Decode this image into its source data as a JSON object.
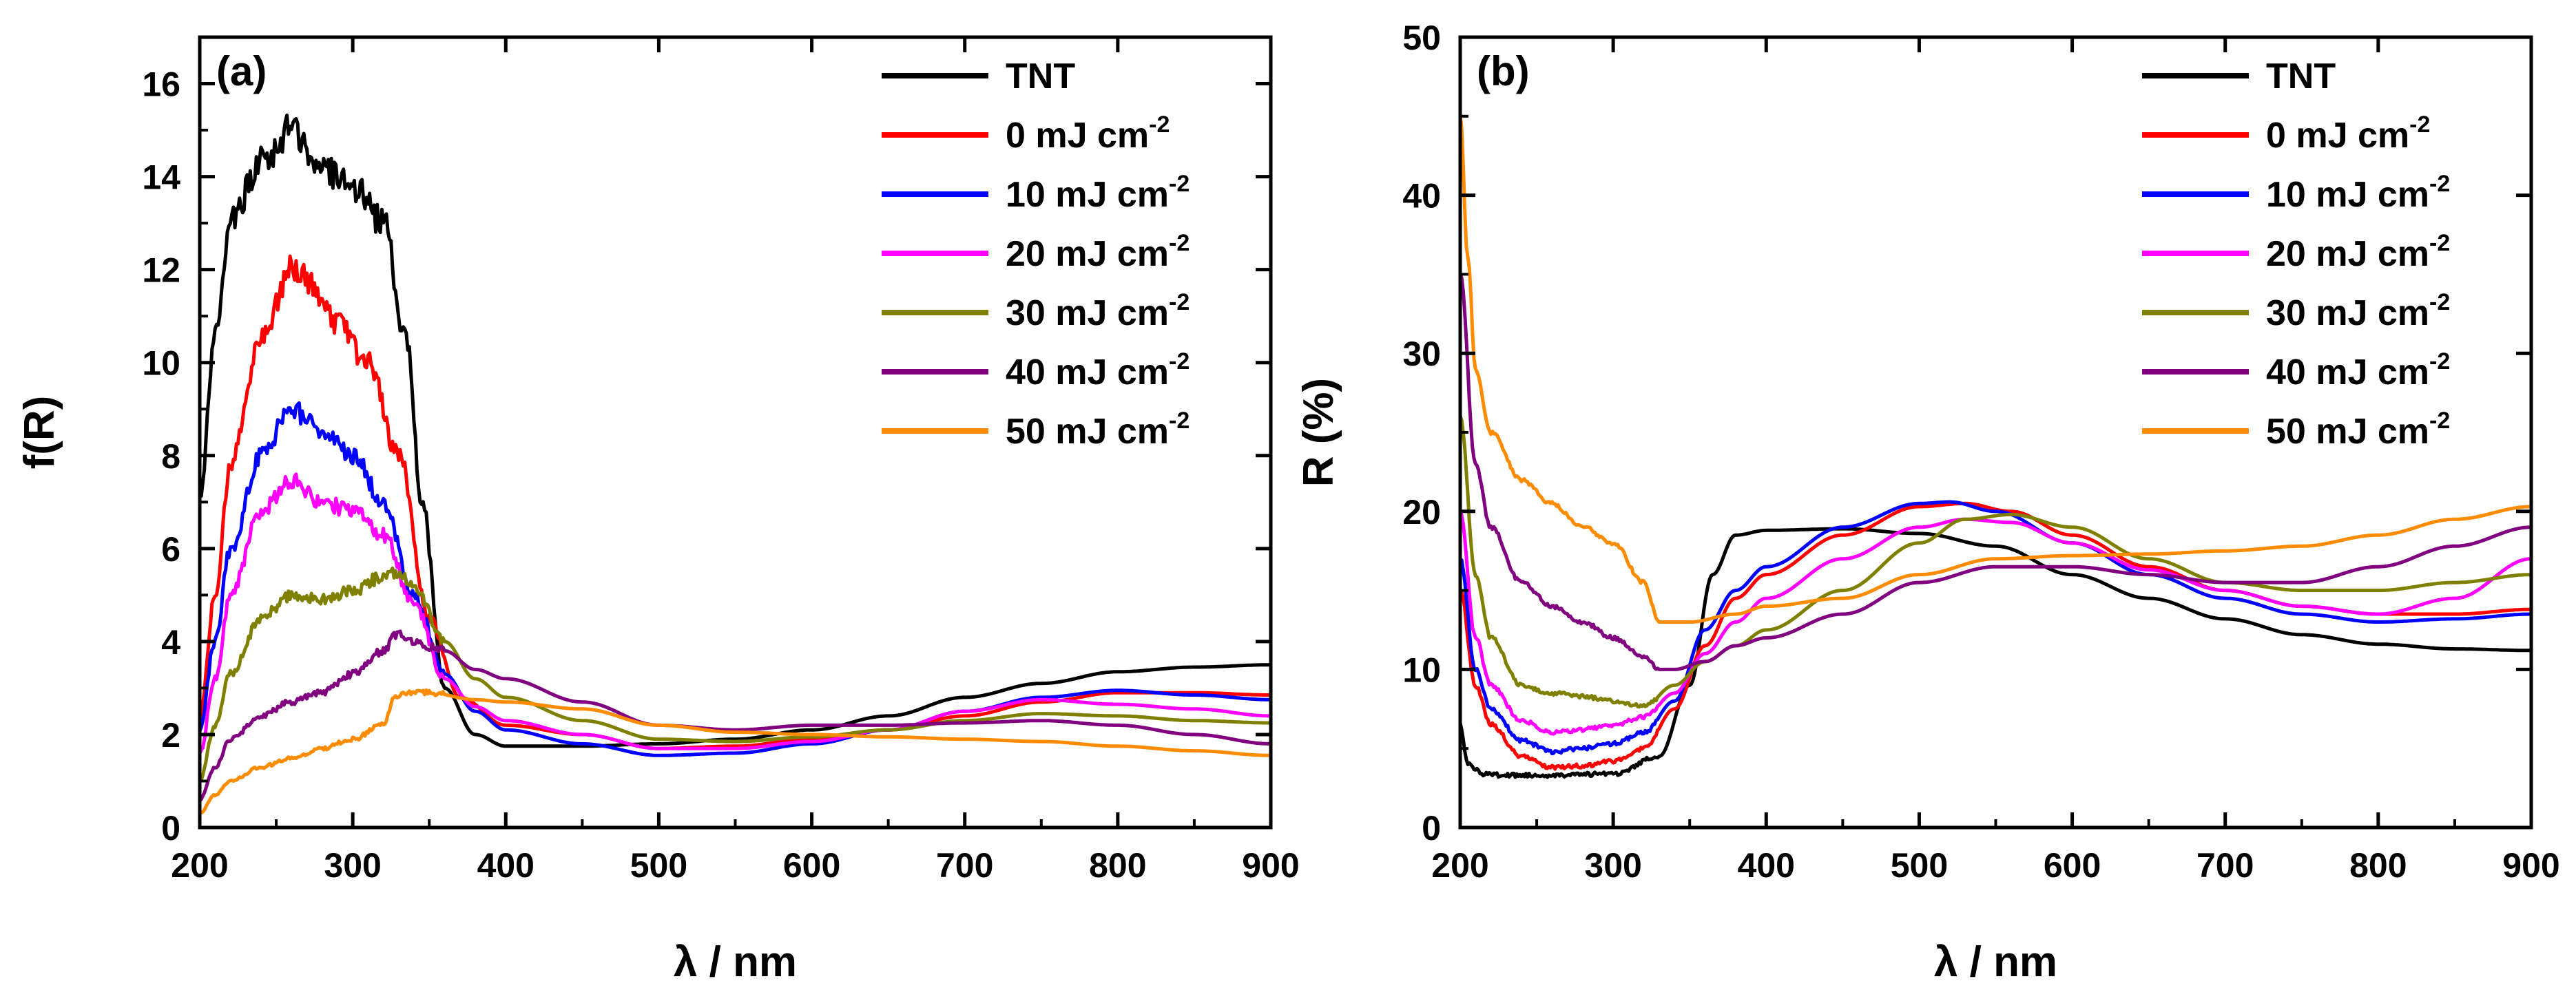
{
  "chart_data": [
    {
      "type": "line",
      "panel_label": "(a)",
      "xlabel": "λ / nm",
      "ylabel": "f(R)",
      "xlim": [
        200,
        900
      ],
      "ylim": [
        0,
        17
      ],
      "xticks": [
        200,
        300,
        400,
        500,
        600,
        700,
        800,
        900
      ],
      "yticks": [
        0,
        2,
        4,
        6,
        8,
        10,
        12,
        14,
        16
      ],
      "legend_position": "top-right",
      "series": [
        {
          "name": "TNT",
          "unit_sup": "",
          "color": "#000000",
          "x": [
            200,
            210,
            220,
            240,
            260,
            280,
            300,
            320,
            335,
            345,
            360,
            380,
            400,
            450,
            500,
            550,
            600,
            650,
            700,
            750,
            800,
            850,
            900
          ],
          "y": [
            7.2,
            10.5,
            13.0,
            14.3,
            15.0,
            14.2,
            13.8,
            13.0,
            10.5,
            7.0,
            3.0,
            2.0,
            1.75,
            1.75,
            1.8,
            1.9,
            2.1,
            2.4,
            2.8,
            3.1,
            3.35,
            3.45,
            3.5
          ]
        },
        {
          "name": "0 mJ cm",
          "unit_sup": "-2",
          "color": "#ff0000",
          "x": [
            200,
            210,
            220,
            240,
            260,
            270,
            290,
            310,
            330,
            350,
            370,
            400,
            450,
            500,
            550,
            600,
            650,
            700,
            750,
            800,
            850,
            900
          ],
          "y": [
            2.4,
            5.0,
            7.8,
            10.5,
            12.0,
            11.8,
            10.8,
            10.0,
            8.0,
            4.5,
            2.8,
            2.2,
            2.0,
            1.7,
            1.75,
            1.9,
            2.1,
            2.4,
            2.7,
            2.9,
            2.9,
            2.85
          ]
        },
        {
          "name": "10 mJ cm",
          "unit_sup": "-2",
          "color": "#0000ff",
          "x": [
            200,
            210,
            220,
            240,
            260,
            280,
            300,
            320,
            340,
            360,
            380,
            400,
            450,
            500,
            550,
            600,
            650,
            700,
            750,
            800,
            850,
            900
          ],
          "y": [
            2.1,
            4.0,
            6.0,
            8.0,
            9.0,
            8.5,
            8.0,
            7.0,
            5.0,
            3.3,
            2.5,
            2.1,
            1.8,
            1.55,
            1.6,
            1.8,
            2.1,
            2.5,
            2.8,
            2.95,
            2.85,
            2.75
          ]
        },
        {
          "name": "20 mJ cm",
          "unit_sup": "-2",
          "color": "#ff00ff",
          "x": [
            200,
            210,
            220,
            240,
            260,
            280,
            300,
            320,
            340,
            360,
            380,
            400,
            450,
            500,
            550,
            600,
            650,
            700,
            750,
            800,
            850,
            900
          ],
          "y": [
            1.6,
            3.2,
            5.0,
            6.8,
            7.5,
            7.0,
            6.8,
            6.3,
            4.8,
            3.2,
            2.6,
            2.3,
            2.0,
            1.7,
            1.7,
            1.85,
            2.1,
            2.5,
            2.75,
            2.65,
            2.55,
            2.4
          ]
        },
        {
          "name": "30 mJ cm",
          "unit_sup": "-2",
          "color": "#808000",
          "x": [
            200,
            210,
            220,
            240,
            260,
            280,
            300,
            320,
            330,
            340,
            360,
            380,
            400,
            450,
            500,
            550,
            600,
            650,
            700,
            750,
            800,
            850,
            900
          ],
          "y": [
            1.0,
            2.2,
            3.3,
            4.5,
            5.0,
            4.9,
            5.1,
            5.4,
            5.5,
            5.2,
            4.0,
            3.2,
            2.8,
            2.3,
            1.9,
            1.85,
            1.95,
            2.1,
            2.3,
            2.45,
            2.4,
            2.3,
            2.25
          ]
        },
        {
          "name": "40 mJ cm",
          "unit_sup": "-2",
          "color": "#800080",
          "x": [
            200,
            210,
            220,
            240,
            260,
            280,
            300,
            320,
            330,
            340,
            360,
            380,
            400,
            450,
            500,
            550,
            600,
            650,
            700,
            750,
            800,
            850,
            900
          ],
          "y": [
            0.6,
            1.3,
            1.9,
            2.4,
            2.7,
            2.9,
            3.3,
            3.8,
            4.2,
            4.0,
            3.8,
            3.4,
            3.2,
            2.7,
            2.2,
            2.1,
            2.2,
            2.2,
            2.25,
            2.3,
            2.2,
            2.0,
            1.8
          ]
        },
        {
          "name": "50 mJ cm",
          "unit_sup": "-2",
          "color": "#ff8c00",
          "x": [
            200,
            210,
            220,
            240,
            260,
            280,
            300,
            320,
            328,
            335,
            350,
            380,
            400,
            450,
            500,
            550,
            600,
            650,
            700,
            750,
            800,
            850,
            900
          ],
          "y": [
            0.3,
            0.7,
            1.0,
            1.3,
            1.5,
            1.7,
            1.9,
            2.2,
            2.8,
            2.9,
            2.9,
            2.75,
            2.7,
            2.55,
            2.2,
            2.05,
            2.0,
            1.95,
            1.9,
            1.85,
            1.75,
            1.65,
            1.55
          ]
        }
      ]
    },
    {
      "type": "line",
      "panel_label": "(b)",
      "xlabel": "λ / nm",
      "ylabel": "R (%)",
      "xlim": [
        200,
        900
      ],
      "ylim": [
        0,
        50
      ],
      "xticks": [
        200,
        300,
        400,
        500,
        600,
        700,
        800,
        900
      ],
      "yticks": [
        0,
        10,
        20,
        30,
        40,
        50
      ],
      "legend_position": "top-right",
      "series": [
        {
          "name": "TNT",
          "unit_sup": "",
          "color": "#000000",
          "x": [
            200,
            205,
            215,
            230,
            260,
            300,
            330,
            350,
            365,
            380,
            400,
            450,
            500,
            550,
            600,
            650,
            700,
            750,
            800,
            850,
            900
          ],
          "y": [
            6.5,
            4.0,
            3.4,
            3.3,
            3.3,
            3.4,
            4.5,
            9.0,
            16.0,
            18.5,
            18.8,
            18.9,
            18.6,
            17.8,
            16.0,
            14.5,
            13.2,
            12.2,
            11.6,
            11.3,
            11.2
          ]
        },
        {
          "name": "0 mJ cm",
          "unit_sup": "-2",
          "color": "#ff0000",
          "x": [
            200,
            210,
            220,
            240,
            260,
            280,
            300,
            320,
            340,
            360,
            380,
            400,
            450,
            500,
            530,
            560,
            600,
            650,
            700,
            750,
            800,
            850,
            900
          ],
          "y": [
            15.0,
            9.0,
            6.5,
            4.5,
            3.8,
            3.9,
            4.2,
            5.0,
            7.5,
            11.5,
            14.5,
            16.0,
            18.5,
            20.3,
            20.5,
            20.0,
            18.5,
            16.5,
            15.0,
            14.0,
            13.5,
            13.5,
            13.8
          ]
        },
        {
          "name": "10 mJ cm",
          "unit_sup": "-2",
          "color": "#0000ff",
          "x": [
            200,
            210,
            220,
            240,
            260,
            280,
            300,
            320,
            340,
            360,
            380,
            400,
            450,
            500,
            520,
            550,
            600,
            650,
            700,
            750,
            800,
            850,
            900
          ],
          "y": [
            17.0,
            10.0,
            7.5,
            5.5,
            4.8,
            5.0,
            5.3,
            6.0,
            8.0,
            12.5,
            15.0,
            16.5,
            19.0,
            20.5,
            20.6,
            20.0,
            18.0,
            16.0,
            14.5,
            13.5,
            13.0,
            13.2,
            13.5
          ]
        },
        {
          "name": "20 mJ cm",
          "unit_sup": "-2",
          "color": "#ff00ff",
          "x": [
            200,
            210,
            220,
            240,
            260,
            280,
            300,
            320,
            340,
            360,
            380,
            400,
            450,
            500,
            530,
            560,
            600,
            650,
            700,
            750,
            800,
            850,
            900
          ],
          "y": [
            20.0,
            12.0,
            9.0,
            6.8,
            6.0,
            6.2,
            6.5,
            7.0,
            8.5,
            11.0,
            13.0,
            14.5,
            17.0,
            19.0,
            19.5,
            19.3,
            18.0,
            16.3,
            15.0,
            14.0,
            13.5,
            14.5,
            17.0
          ]
        },
        {
          "name": "30 mJ cm",
          "unit_sup": "-2",
          "color": "#808000",
          "x": [
            200,
            210,
            220,
            240,
            260,
            280,
            300,
            320,
            340,
            360,
            380,
            400,
            450,
            500,
            530,
            560,
            600,
            650,
            700,
            750,
            800,
            850,
            900
          ],
          "y": [
            26.0,
            16.0,
            12.0,
            9.0,
            8.5,
            8.3,
            8.0,
            7.7,
            9.0,
            10.5,
            11.5,
            12.5,
            15.0,
            18.0,
            19.5,
            19.8,
            19.0,
            17.0,
            15.5,
            15.0,
            15.0,
            15.5,
            16.0
          ]
        },
        {
          "name": "40 mJ cm",
          "unit_sup": "-2",
          "color": "#800080",
          "x": [
            200,
            210,
            220,
            240,
            260,
            280,
            300,
            320,
            330,
            340,
            360,
            380,
            400,
            450,
            500,
            550,
            600,
            650,
            700,
            750,
            800,
            850,
            900
          ],
          "y": [
            35.0,
            23.0,
            19.0,
            15.5,
            14.0,
            13.0,
            12.0,
            10.8,
            10.0,
            10.0,
            10.5,
            11.5,
            12.0,
            13.5,
            15.5,
            16.5,
            16.5,
            16.0,
            15.5,
            15.5,
            16.5,
            17.8,
            19.0
          ]
        },
        {
          "name": "50 mJ cm",
          "unit_sup": "-2",
          "color": "#ff8c00",
          "x": [
            200,
            205,
            210,
            220,
            240,
            260,
            280,
            300,
            320,
            330,
            350,
            380,
            400,
            450,
            500,
            550,
            600,
            650,
            700,
            750,
            800,
            850,
            900
          ],
          "y": [
            45.0,
            36.0,
            29.0,
            25.0,
            22.0,
            20.5,
            19.0,
            18.0,
            15.5,
            13.0,
            13.0,
            13.5,
            14.0,
            14.5,
            16.0,
            17.0,
            17.2,
            17.3,
            17.5,
            17.8,
            18.5,
            19.5,
            20.3
          ]
        }
      ]
    }
  ]
}
